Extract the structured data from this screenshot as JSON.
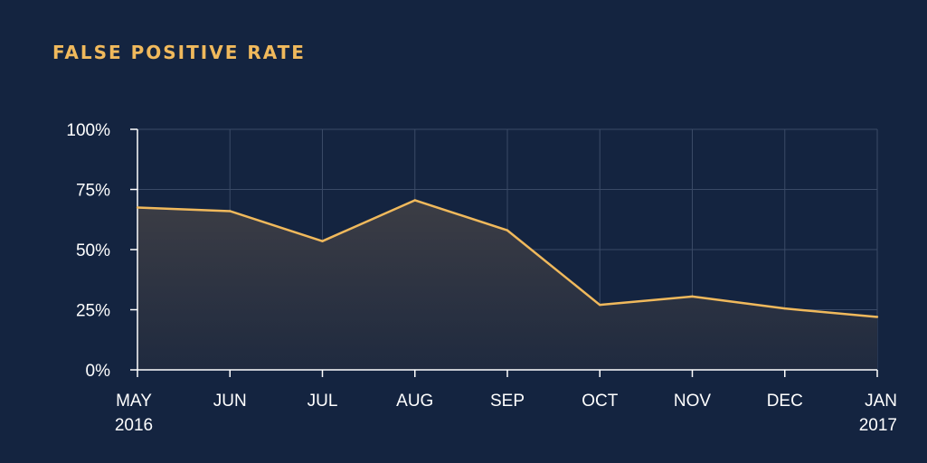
{
  "chart_data": {
    "type": "area",
    "title": "FALSE POSITIVE RATE",
    "xlabel": "",
    "ylabel": "",
    "categories": [
      [
        "MAY",
        "2016"
      ],
      [
        "JUN"
      ],
      [
        "JUL"
      ],
      [
        "AUG"
      ],
      [
        "SEP"
      ],
      [
        "OCT"
      ],
      [
        "NOV"
      ],
      [
        "DEC"
      ],
      [
        "JAN",
        "2017"
      ]
    ],
    "values": [
      67.5,
      66,
      53.5,
      70.5,
      58,
      27,
      30.5,
      25.5,
      22
    ],
    "ylim": [
      0,
      100
    ],
    "yticks": [
      0,
      25,
      50,
      75,
      100
    ],
    "ytick_labels": [
      "0%",
      "25%",
      "50%",
      "75%",
      "100%"
    ],
    "grid": true,
    "colors": {
      "background": "#142440",
      "line": "#f0b95c",
      "area_top": "#3c3d45",
      "area_bottom": "#1f2a3f",
      "grid": "#3a4a66",
      "axis": "#ffffff",
      "title": "#f0b95c"
    }
  }
}
